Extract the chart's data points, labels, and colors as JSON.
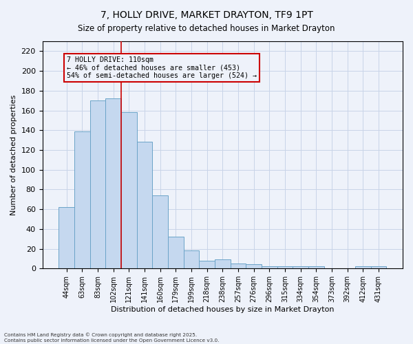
{
  "title": "7, HOLLY DRIVE, MARKET DRAYTON, TF9 1PT",
  "subtitle": "Size of property relative to detached houses in Market Drayton",
  "xlabel": "Distribution of detached houses by size in Market Drayton",
  "ylabel": "Number of detached properties",
  "categories": [
    "44sqm",
    "63sqm",
    "83sqm",
    "102sqm",
    "121sqm",
    "141sqm",
    "160sqm",
    "179sqm",
    "199sqm",
    "218sqm",
    "238sqm",
    "257sqm",
    "276sqm",
    "296sqm",
    "315sqm",
    "334sqm",
    "354sqm",
    "373sqm",
    "392sqm",
    "412sqm",
    "431sqm"
  ],
  "values": [
    62,
    139,
    170,
    172,
    158,
    128,
    74,
    32,
    18,
    8,
    9,
    5,
    4,
    2,
    2,
    2,
    2,
    0,
    0,
    2,
    2
  ],
  "bar_color": "#C5D8EF",
  "bar_edge_color": "#6BA3C8",
  "vline_x_index": 3.5,
  "vline_color": "#CC0000",
  "annotation_title": "7 HOLLY DRIVE: 110sqm",
  "annotation_line1": "← 46% of detached houses are smaller (453)",
  "annotation_line2": "54% of semi-detached houses are larger (524) →",
  "annotation_box_color": "#CC0000",
  "footnote_line1": "Contains HM Land Registry data © Crown copyright and database right 2025.",
  "footnote_line2": "Contains public sector information licensed under the Open Government Licence v3.0.",
  "ylim": [
    0,
    230
  ],
  "yticks": [
    0,
    20,
    40,
    60,
    80,
    100,
    120,
    140,
    160,
    180,
    200,
    220
  ],
  "figsize": [
    6.0,
    5.0
  ],
  "dpi": 100,
  "background_color": "#EEF2FA"
}
